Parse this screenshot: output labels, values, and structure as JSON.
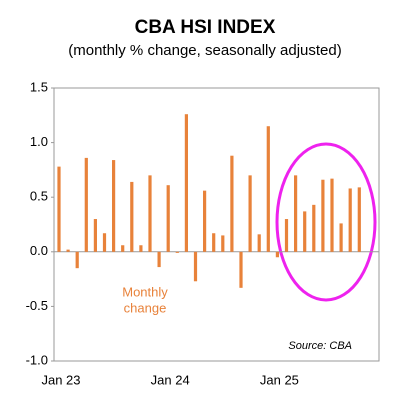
{
  "chart_data": {
    "type": "bar",
    "title": "CBA HSI INDEX",
    "subtitle": "(monthly % change, seasonally adjusted)",
    "annotation": [
      "Monthly",
      "change"
    ],
    "source": "Source: CBA",
    "color": "#e8823a",
    "categories": [
      "Jan 23",
      null,
      null,
      null,
      null,
      null,
      null,
      null,
      null,
      null,
      null,
      null,
      "Jan 24",
      null,
      null,
      null,
      null,
      null,
      null,
      null,
      null,
      null,
      null,
      null,
      "Jan 25",
      null,
      null,
      null,
      null,
      null,
      null,
      null,
      null,
      null
    ],
    "values": [
      0.78,
      0.02,
      -0.15,
      0.86,
      0.3,
      0.17,
      0.84,
      0.06,
      0.64,
      0.06,
      0.7,
      -0.14,
      0.61,
      -0.01,
      1.26,
      -0.27,
      0.56,
      0.17,
      0.15,
      0.88,
      -0.33,
      0.7,
      0.16,
      1.15,
      -0.05,
      0.3,
      0.7,
      0.37,
      0.43,
      0.66,
      0.67,
      0.26,
      0.58,
      0.59
    ],
    "ylim": [
      -1.0,
      1.5
    ],
    "yticks": [
      1.5,
      {
        "value": 1.0,
        "label": "1.0"
      },
      0.5,
      {
        "value": 0.0,
        "label": "0.0"
      },
      -0.5,
      {
        "value": -1.0,
        "label": "-1.0"
      }
    ]
  }
}
